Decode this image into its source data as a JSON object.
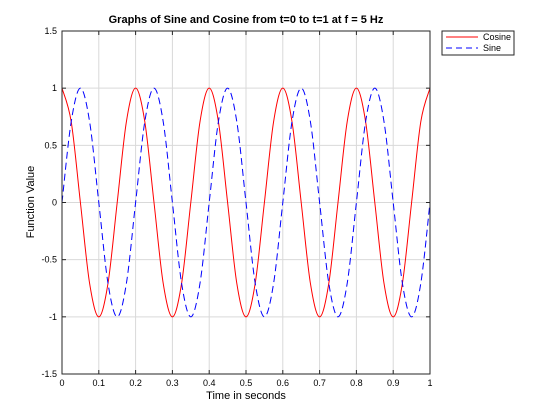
{
  "chart_data": {
    "type": "line",
    "title": "Graphs of Sine and Cosine from t=0 to t=1  at f = 5 Hz",
    "xlabel": "Time in seconds",
    "ylabel": "Function Value",
    "xlim": [
      0,
      1
    ],
    "ylim": [
      -1.5,
      1.5
    ],
    "xticks": [
      0,
      0.1,
      0.2,
      0.3,
      0.4,
      0.5,
      0.6,
      0.7,
      0.8,
      0.9,
      1
    ],
    "xtick_labels": [
      "0",
      "0.1",
      "0.2",
      "0.3",
      "0.4",
      "0.5",
      "0.6",
      "0.7",
      "0.8",
      "0.9",
      "1"
    ],
    "yticks": [
      -1.5,
      -1,
      -0.5,
      0,
      0.5,
      1,
      1.5
    ],
    "ytick_labels": [
      "-1.5",
      "-1",
      "-0.5",
      "0",
      "0.5",
      "1",
      "1.5"
    ],
    "grid": true,
    "legend_position": "outside-top-right",
    "series": [
      {
        "name": "Cosine",
        "color": "#ff0000",
        "line_style": "solid",
        "x": [
          0,
          0.025,
          0.05,
          0.075,
          0.1,
          0.125,
          0.15,
          0.175,
          0.2,
          0.225,
          0.25,
          0.275,
          0.3,
          0.325,
          0.35,
          0.375,
          0.4,
          0.425,
          0.45,
          0.475,
          0.5,
          0.525,
          0.55,
          0.575,
          0.6,
          0.625,
          0.65,
          0.675,
          0.7,
          0.725,
          0.75,
          0.775,
          0.8,
          0.825,
          0.85,
          0.875,
          0.9,
          0.925,
          0.95,
          0.975,
          1
        ],
        "values": [
          1,
          0.7071,
          0,
          -0.7071,
          -1,
          -0.7071,
          0,
          0.7071,
          1,
          0.7071,
          0,
          -0.7071,
          -1,
          -0.7071,
          0,
          0.7071,
          1,
          0.7071,
          0,
          -0.7071,
          -1,
          -0.7071,
          0,
          0.7071,
          1,
          0.7071,
          0,
          -0.7071,
          -1,
          -0.7071,
          0,
          0.7071,
          1,
          0.7071,
          0,
          -0.7071,
          -1,
          -0.7071,
          0,
          0.7071,
          1
        ]
      },
      {
        "name": "Sine",
        "color": "#0000ff",
        "line_style": "dashed",
        "x": [
          0,
          0.025,
          0.05,
          0.075,
          0.1,
          0.125,
          0.15,
          0.175,
          0.2,
          0.225,
          0.25,
          0.275,
          0.3,
          0.325,
          0.35,
          0.375,
          0.4,
          0.425,
          0.45,
          0.475,
          0.5,
          0.525,
          0.55,
          0.575,
          0.6,
          0.625,
          0.65,
          0.675,
          0.7,
          0.725,
          0.75,
          0.775,
          0.8,
          0.825,
          0.85,
          0.875,
          0.9,
          0.925,
          0.95,
          0.975,
          1
        ],
        "values": [
          0,
          0.7071,
          1,
          0.7071,
          0,
          -0.7071,
          -1,
          -0.7071,
          0,
          0.7071,
          1,
          0.7071,
          0,
          -0.7071,
          -1,
          -0.7071,
          0,
          0.7071,
          1,
          0.7071,
          0,
          -0.7071,
          -1,
          -0.7071,
          0,
          0.7071,
          1,
          0.7071,
          0,
          -0.7071,
          -1,
          -0.7071,
          0,
          0.7071,
          1,
          0.7071,
          0,
          -0.7071,
          -1,
          -0.7071,
          0
        ]
      }
    ]
  }
}
